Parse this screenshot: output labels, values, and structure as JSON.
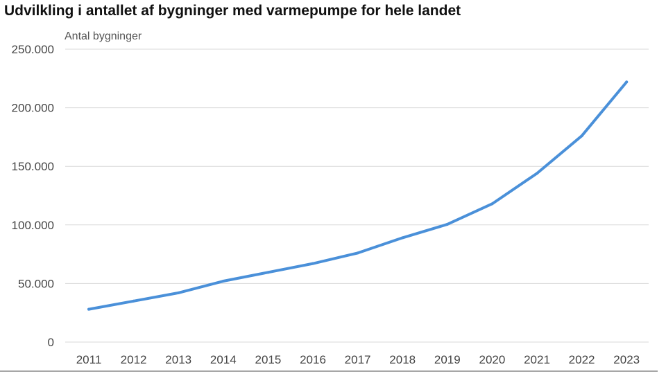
{
  "chart_data": {
    "type": "line",
    "title": "Udvilkling i antallet af bygninger med varmepumpe for hele landet",
    "ylabel": "Antal bygninger",
    "xlabel": "",
    "categories": [
      "2011",
      "2012",
      "2013",
      "2014",
      "2015",
      "2016",
      "2017",
      "2018",
      "2019",
      "2020",
      "2021",
      "2022",
      "2023"
    ],
    "series": [
      {
        "values": [
          28000,
          35000,
          42000,
          52000,
          59500,
          67000,
          76000,
          89000,
          100500,
          118000,
          144000,
          176000,
          222000
        ],
        "color": "#4a90d9"
      }
    ],
    "ylim": [
      0,
      250000
    ],
    "yticks": [
      0,
      50000,
      100000,
      150000,
      200000,
      250000
    ],
    "ytick_labels": [
      "0",
      "50.000",
      "100.000",
      "150.000",
      "200.000",
      "250.000"
    ],
    "grid": true,
    "legend": "none"
  }
}
